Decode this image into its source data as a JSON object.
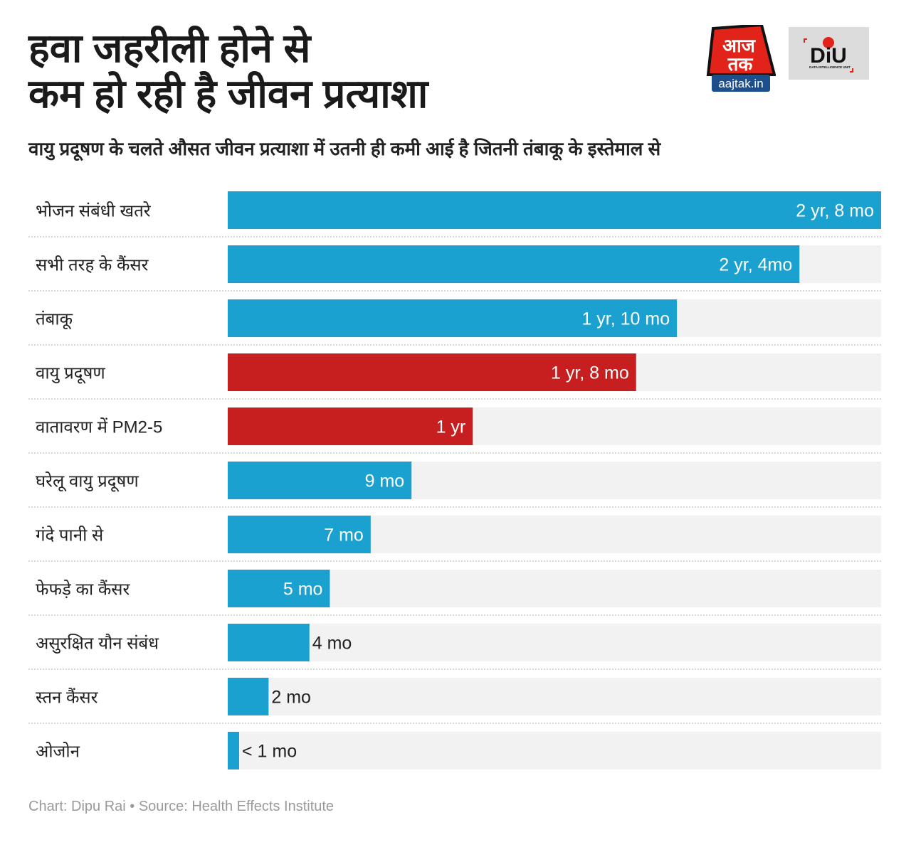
{
  "header": {
    "title_line1": "हवा जहरीली होने से",
    "title_line2": "कम हो रही है जीवन प्रत्याशा",
    "subtitle": "वायु प्रदूषण के चलते औसत जीवन प्रत्याशा में उतनी ही कमी आई है जितनी तंबाकू के इस्तेमाल से",
    "logos": [
      "आज तक aajtak.in",
      "DiU DATA INTELLIGENCE UNIT"
    ]
  },
  "chart_data": {
    "type": "bar",
    "orientation": "horizontal",
    "unit": "months",
    "xlim": [
      0,
      32
    ],
    "grid": false,
    "categories": [
      "भोजन संबंधी खतरे",
      "सभी तरह के कैंसर",
      "तंबाकू",
      "वायु प्रदूषण",
      "वातावरण में PM2-5",
      "घरेलू वायु प्रदूषण",
      "गंदे पानी से",
      "फेफड़े का कैंसर",
      "असुरक्षित यौन संबंध",
      "स्तन कैंसर",
      "ओजोन"
    ],
    "values": [
      32,
      28,
      22,
      20,
      12,
      9,
      7,
      5,
      4,
      2,
      0.5
    ],
    "value_labels": [
      "2 yr, 8 mo",
      "2 yr, 4mo",
      "1 yr, 10 mo",
      "1 yr, 8 mo",
      "1 yr",
      "9 mo",
      "7 mo",
      "5 mo",
      "4 mo",
      "2 mo",
      "< 1 mo"
    ],
    "highlight": [
      false,
      false,
      false,
      true,
      true,
      false,
      false,
      false,
      false,
      false,
      false
    ],
    "colors": {
      "default": "#1ba1cf",
      "highlight": "#c71f1f",
      "track": "#f2f2f2",
      "divider": "#cccccc"
    }
  },
  "footer": "Chart: Dipu Rai • Source: Health Effects Institute"
}
